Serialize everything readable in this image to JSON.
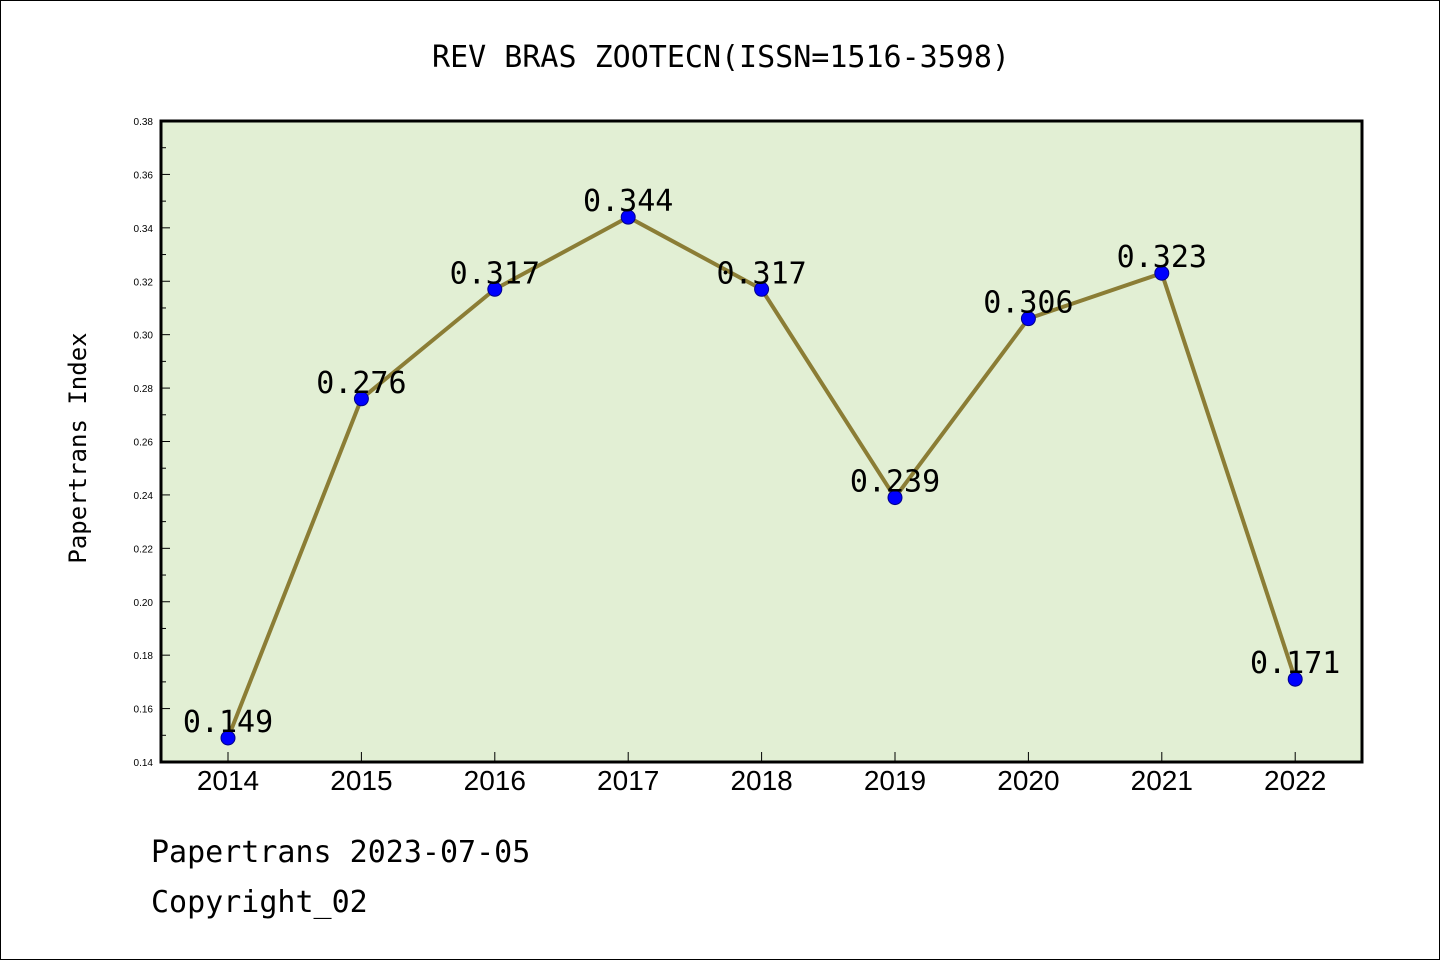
{
  "chart_data": {
    "type": "line",
    "title": "REV BRAS ZOOTECN(ISSN=1516-3598)",
    "ylabel": "Papertrans Index",
    "xlabel": "",
    "categories": [
      "2014",
      "2015",
      "2016",
      "2017",
      "2018",
      "2019",
      "2020",
      "2021",
      "2022"
    ],
    "values": [
      0.149,
      0.276,
      0.317,
      0.344,
      0.317,
      0.239,
      0.306,
      0.323,
      0.171
    ],
    "data_labels": [
      "0.149",
      "0.276",
      "0.317",
      "0.344",
      "0.317",
      "0.239",
      "0.306",
      "0.323",
      "0.171"
    ],
    "ylim": [
      0.14,
      0.38
    ],
    "yticks": [
      "0.14",
      "0.16",
      "0.18",
      "0.20",
      "0.22",
      "0.24",
      "0.26",
      "0.28",
      "0.30",
      "0.32",
      "0.34",
      "0.36",
      "0.38"
    ],
    "grid": false,
    "colors": {
      "plot_background": "#e2efd4",
      "line": "#8b7d35",
      "marker": "#0000ff"
    }
  },
  "footer": {
    "line1": "Papertrans 2023-07-05",
    "line2": "Copyright_02"
  }
}
